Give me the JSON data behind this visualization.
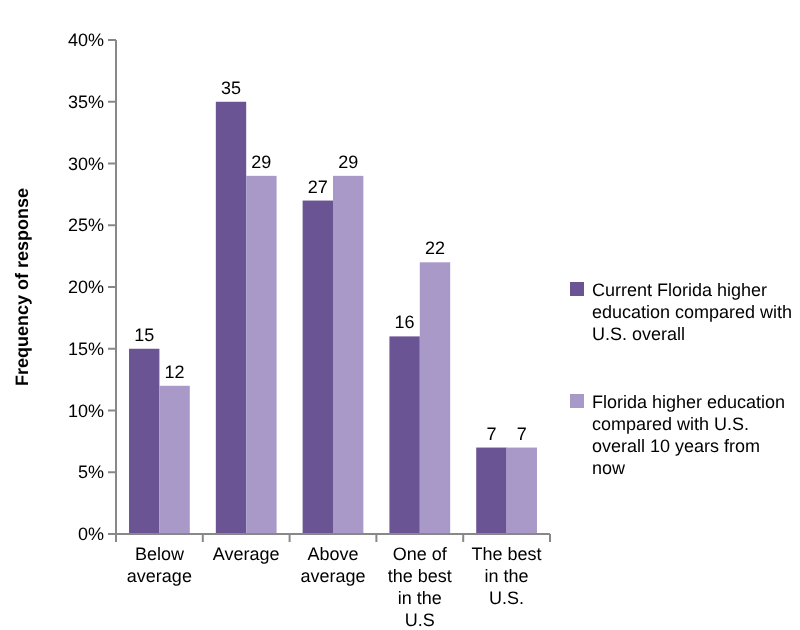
{
  "chart_data": {
    "type": "bar",
    "ylabel": "Frequency of response",
    "categories": [
      "Below average",
      "Average",
      "Above average",
      "One of the best in the U.S",
      "The best in the U.S."
    ],
    "series": [
      {
        "name": "Current Florida higher education compared with U.S. overall",
        "color": "#6b5494",
        "values": [
          15,
          35,
          27,
          16,
          7
        ]
      },
      {
        "name": "Florida higher education compared with U.S. overall 10 years from now",
        "color": "#a899c9",
        "values": [
          12,
          29,
          29,
          22,
          7
        ]
      }
    ],
    "ylim": [
      0,
      40
    ],
    "yticks": [
      {
        "value": 0,
        "label": "0%"
      },
      {
        "value": 5,
        "label": "5%"
      },
      {
        "value": 10,
        "label": "10%"
      },
      {
        "value": 15,
        "label": "15%"
      },
      {
        "value": 20,
        "label": "20%"
      },
      {
        "value": 25,
        "label": "25%"
      },
      {
        "value": 30,
        "label": "30%"
      },
      {
        "value": 35,
        "label": "35%"
      },
      {
        "value": 40,
        "label": "40%"
      }
    ],
    "data_labels": true,
    "legend": "right",
    "grid": false
  }
}
